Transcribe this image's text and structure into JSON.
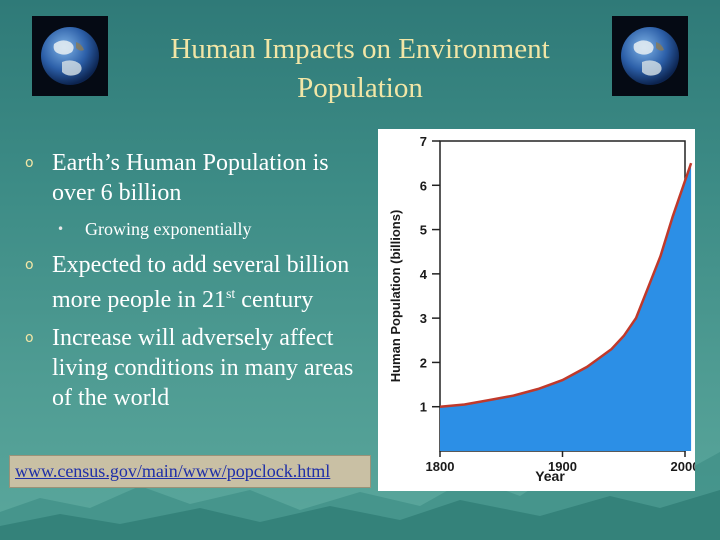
{
  "slide": {
    "title_line1": "Human Impacts on Environment",
    "title_line2": "Population",
    "bullets": [
      {
        "level": 1,
        "text": "Earth’s Human Population is over 6 billion"
      },
      {
        "level": 2,
        "text": "Growing exponentially"
      },
      {
        "level": 1,
        "text_before": "Expected to add several billion more people in 21",
        "sup": "st",
        "text_after": " century"
      },
      {
        "level": 1,
        "text": "Increase will adversely affect living conditions in many areas of the world"
      }
    ],
    "bullet_marks": {
      "level1": "o",
      "level2": "•"
    },
    "link_text": "www.census.gov/main/www/popclock.html",
    "colors": {
      "title": "#f2e6a6",
      "body_text": "#ffffff",
      "link": "#1f2fa8",
      "fill": "#2c8fe6",
      "curve": "#c0392b"
    }
  },
  "chart_data": {
    "type": "area",
    "xlabel": "Year",
    "ylabel": "Human Population (billions)",
    "xlim": [
      1800,
      2000
    ],
    "ylim": [
      0,
      7
    ],
    "x_ticks": [
      1800,
      1900,
      2000
    ],
    "y_ticks": [
      1,
      2,
      3,
      4,
      5,
      6,
      7
    ],
    "grid": false,
    "series": [
      {
        "x": [
          1800,
          1820,
          1840,
          1860,
          1880,
          1900,
          1920,
          1930,
          1940,
          1950,
          1960,
          1970,
          1980,
          1990,
          2000,
          2005
        ],
        "y": [
          1.0,
          1.05,
          1.15,
          1.25,
          1.4,
          1.6,
          1.9,
          2.1,
          2.3,
          2.6,
          3.0,
          3.7,
          4.4,
          5.3,
          6.1,
          6.5
        ]
      }
    ]
  }
}
